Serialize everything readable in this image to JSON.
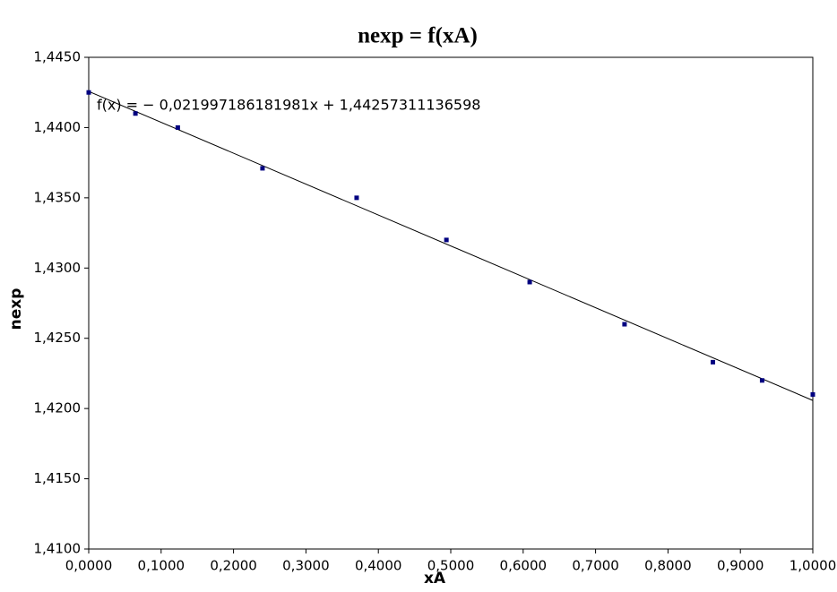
{
  "chart_data": {
    "type": "scatter",
    "title": "nexp = f(xA)",
    "x_label": "xA",
    "y_label": "nexp",
    "x": [
      0.0,
      0.0645,
      0.123,
      0.24,
      0.37,
      0.494,
      0.609,
      0.74,
      0.862,
      0.93,
      1.0
    ],
    "values": [
      1.4425,
      1.441,
      1.44,
      1.4371,
      1.435,
      1.432,
      1.429,
      1.426,
      1.4233,
      1.422,
      1.421
    ],
    "color": "#000080",
    "trendline": {
      "label": "f(x) = − 0,021997186181981x + 1,44257311136598",
      "slope": -0.021997186181981,
      "intercept": 1.44257311136598,
      "color": "#000000"
    },
    "xlim": [
      0,
      1
    ],
    "ylim": [
      1.41,
      1.445
    ],
    "xticks": [
      {
        "value": 0,
        "label": "0,0000"
      },
      {
        "value": 0.1,
        "label": "0,1000"
      },
      {
        "value": 0.2,
        "label": "0,2000"
      },
      {
        "value": 0.3,
        "label": "0,3000"
      },
      {
        "value": 0.4,
        "label": "0,4000"
      },
      {
        "value": 0.5,
        "label": "0,5000"
      },
      {
        "value": 0.6,
        "label": "0,6000"
      },
      {
        "value": 0.7,
        "label": "0,7000"
      },
      {
        "value": 0.8,
        "label": "0,8000"
      },
      {
        "value": 0.9,
        "label": "0,9000"
      },
      {
        "value": 1,
        "label": "1,0000"
      }
    ],
    "yticks": [
      {
        "value": 1.41,
        "label": "1,4100"
      },
      {
        "value": 1.415,
        "label": "1,4150"
      },
      {
        "value": 1.42,
        "label": "1,4200"
      },
      {
        "value": 1.425,
        "label": "1,4250"
      },
      {
        "value": 1.43,
        "label": "1,4300"
      },
      {
        "value": 1.435,
        "label": "1,4350"
      },
      {
        "value": 1.44,
        "label": "1,4400"
      },
      {
        "value": 1.445,
        "label": "1,4450"
      }
    ],
    "grid": false
  }
}
